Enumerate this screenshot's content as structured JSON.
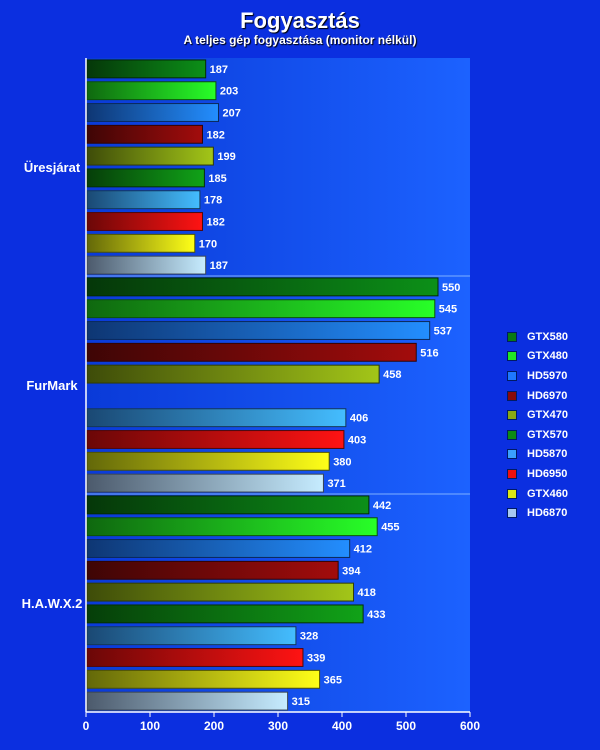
{
  "chart_data": {
    "type": "bar",
    "orientation": "horizontal",
    "title": "Fogyasztás",
    "subtitle": "A teljes gép fogyasztása (monitor nélkül)",
    "xlim": [
      0,
      600
    ],
    "xticks": [
      0,
      100,
      200,
      300,
      400,
      500,
      600
    ],
    "grid": false,
    "legend_position": "right",
    "categories": [
      "Üresjárat",
      "FurMark",
      "H.A.W.X.2"
    ],
    "series": [
      {
        "name": "GTX580",
        "color": "#0a7a14",
        "values": [
          187,
          550,
          442
        ]
      },
      {
        "name": "GTX480",
        "color": "#22e622",
        "values": [
          203,
          545,
          455
        ]
      },
      {
        "name": "HD5970",
        "color": "#1e78ff",
        "values": [
          207,
          537,
          412
        ]
      },
      {
        "name": "HD6970",
        "color": "#8a0a0a",
        "values": [
          182,
          516,
          394
        ]
      },
      {
        "name": "GTX470",
        "color": "#8aa814",
        "values": [
          199,
          458,
          418
        ]
      },
      {
        "name": "GTX570",
        "color": "#0e8a14",
        "values": [
          185,
          null,
          433
        ]
      },
      {
        "name": "HD5870",
        "color": "#3aa0ff",
        "values": [
          178,
          406,
          328
        ]
      },
      {
        "name": "HD6950",
        "color": "#ee1010",
        "values": [
          182,
          403,
          339
        ]
      },
      {
        "name": "GTX460",
        "color": "#dde614",
        "values": [
          170,
          380,
          365
        ]
      },
      {
        "name": "HD6870",
        "color": "#a8c8f0",
        "values": [
          187,
          371,
          315
        ]
      }
    ]
  }
}
